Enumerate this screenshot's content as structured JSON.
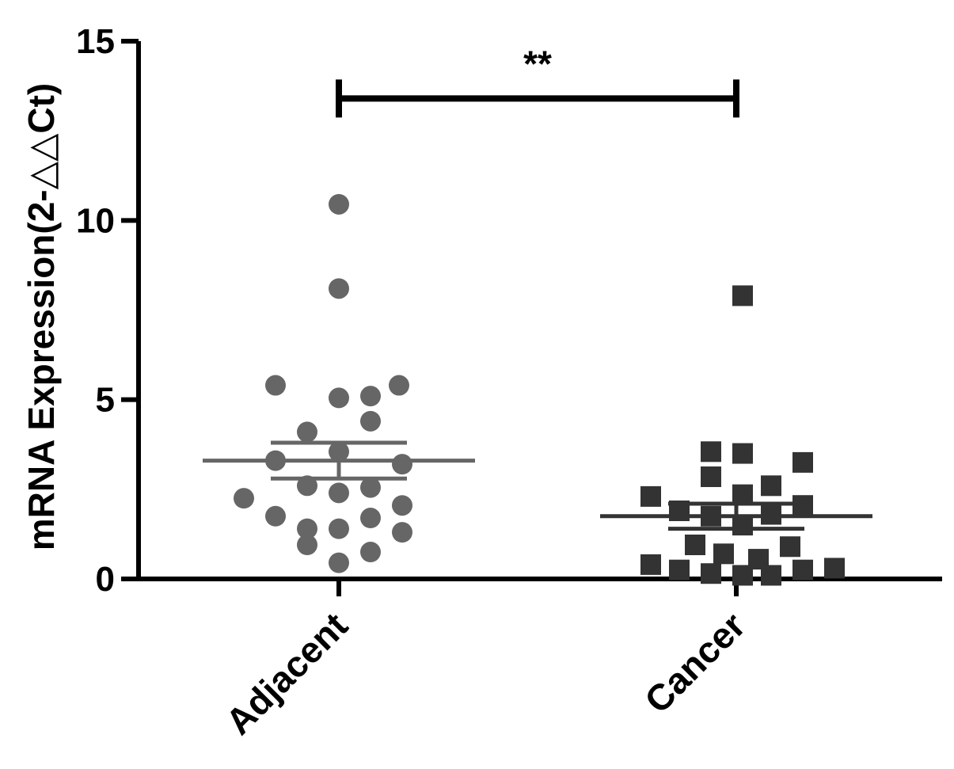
{
  "chart_data": {
    "type": "scatter",
    "title": "",
    "xlabel": "",
    "ylabel": "mRNA Expression(2-△△Ct)",
    "ylim": [
      0,
      15
    ],
    "yticks": [
      0,
      5,
      10,
      15
    ],
    "categories": [
      "Adjacent",
      "Cancer"
    ],
    "significance": {
      "label": "**",
      "from": "Adjacent",
      "to": "Cancer",
      "y": 13.4
    },
    "colors": {
      "Adjacent": "#666666",
      "Cancer": "#333333",
      "axis": "#000000",
      "bracket": "#000000"
    },
    "series": [
      {
        "category": "Adjacent",
        "marker": "circle",
        "mean": 3.3,
        "sem_low": 2.8,
        "sem_high": 3.8,
        "points": [
          {
            "offset": 0,
            "y": 10.45
          },
          {
            "offset": 0,
            "y": 8.1
          },
          {
            "offset": -1.0,
            "y": 5.4
          },
          {
            "offset": 0,
            "y": 5.05
          },
          {
            "offset": 0.5,
            "y": 5.1
          },
          {
            "offset": 0.95,
            "y": 5.4
          },
          {
            "offset": 0.5,
            "y": 4.4
          },
          {
            "offset": -0.5,
            "y": 4.1
          },
          {
            "offset": 0,
            "y": 3.55
          },
          {
            "offset": -1.0,
            "y": 3.3
          },
          {
            "offset": 1.0,
            "y": 3.2
          },
          {
            "offset": -0.5,
            "y": 2.6
          },
          {
            "offset": 0,
            "y": 2.4
          },
          {
            "offset": 0.5,
            "y": 2.55
          },
          {
            "offset": -1.5,
            "y": 2.25
          },
          {
            "offset": 1.0,
            "y": 2.05
          },
          {
            "offset": -1.0,
            "y": 1.75
          },
          {
            "offset": 0.5,
            "y": 1.7
          },
          {
            "offset": -0.5,
            "y": 1.4
          },
          {
            "offset": 0,
            "y": 1.4
          },
          {
            "offset": 1.0,
            "y": 1.3
          },
          {
            "offset": -0.5,
            "y": 0.95
          },
          {
            "offset": 0.5,
            "y": 0.75
          },
          {
            "offset": 0,
            "y": 0.45
          }
        ]
      },
      {
        "category": "Cancer",
        "marker": "square",
        "mean": 1.75,
        "sem_low": 1.4,
        "sem_high": 2.1,
        "points": [
          {
            "offset": 0.1,
            "y": 7.9
          },
          {
            "offset": -0.4,
            "y": 3.55
          },
          {
            "offset": 0.1,
            "y": 3.5
          },
          {
            "offset": 1.05,
            "y": 3.25
          },
          {
            "offset": -0.4,
            "y": 2.85
          },
          {
            "offset": 0.55,
            "y": 2.6
          },
          {
            "offset": -1.35,
            "y": 2.3
          },
          {
            "offset": 0.1,
            "y": 2.35
          },
          {
            "offset": -0.9,
            "y": 1.9
          },
          {
            "offset": 1.05,
            "y": 2.05
          },
          {
            "offset": -0.4,
            "y": 1.75
          },
          {
            "offset": 0.55,
            "y": 1.8
          },
          {
            "offset": 0.1,
            "y": 1.5
          },
          {
            "offset": -0.65,
            "y": 0.95
          },
          {
            "offset": 0.85,
            "y": 0.9
          },
          {
            "offset": -0.2,
            "y": 0.7
          },
          {
            "offset": 0.35,
            "y": 0.55
          },
          {
            "offset": -1.35,
            "y": 0.4
          },
          {
            "offset": -0.9,
            "y": 0.25
          },
          {
            "offset": -0.4,
            "y": 0.15
          },
          {
            "offset": 0.1,
            "y": 0.1
          },
          {
            "offset": 0.55,
            "y": 0.1
          },
          {
            "offset": 1.05,
            "y": 0.25
          },
          {
            "offset": 1.55,
            "y": 0.3
          }
        ]
      }
    ]
  }
}
